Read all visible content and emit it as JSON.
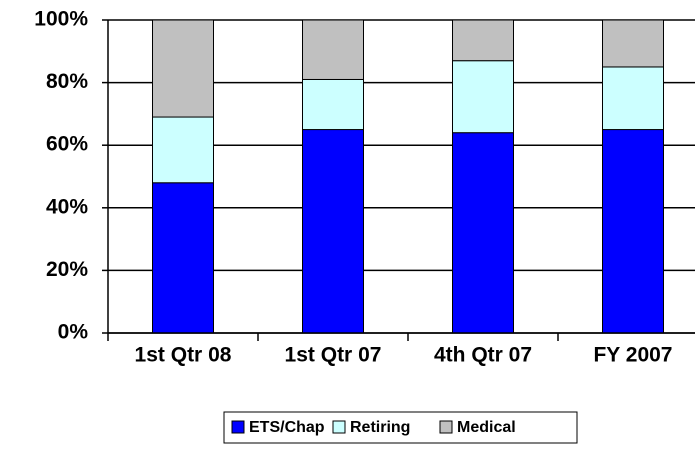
{
  "chart_data": {
    "type": "bar",
    "stacked": true,
    "categories": [
      "1st Qtr 08",
      "1st Qtr 07",
      "4th Qtr 07",
      "FY 2007"
    ],
    "series": [
      {
        "name": "ETS/Chap",
        "color": "#0000ff",
        "values": [
          48,
          65,
          64,
          65
        ]
      },
      {
        "name": "Retiring",
        "color": "#ccffff",
        "values": [
          21,
          16,
          23,
          20
        ]
      },
      {
        "name": "Medical",
        "color": "#c0c0c0",
        "values": [
          31,
          19,
          13,
          15
        ]
      }
    ],
    "ylim": [
      0,
      100
    ],
    "yticks": [
      {
        "value": 0,
        "label": "0%"
      },
      {
        "value": 20,
        "label": "20%"
      },
      {
        "value": 40,
        "label": "40%"
      },
      {
        "value": 60,
        "label": "60%"
      },
      {
        "value": 80,
        "label": "80%"
      },
      {
        "value": 100,
        "label": "100%"
      }
    ],
    "grid": true,
    "legend": "bottom"
  }
}
